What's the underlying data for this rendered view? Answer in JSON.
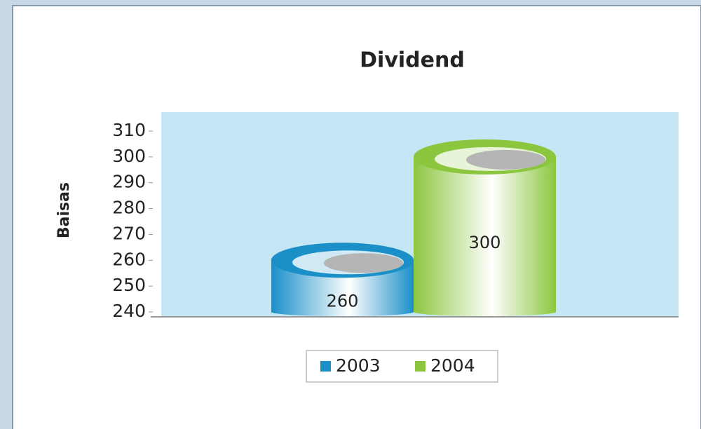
{
  "chart_data": {
    "type": "bar3d",
    "title": "Dividend",
    "y_label": "Baisas",
    "categories": [
      null
    ],
    "series": [
      {
        "name": "2003",
        "color": "#1a8fc8",
        "values": [
          260
        ]
      },
      {
        "name": "2004",
        "color": "#8cc63f",
        "values": [
          300
        ]
      }
    ],
    "ylim": [
      240,
      310
    ],
    "yticks": [
      240,
      250,
      260,
      270,
      280,
      290,
      300,
      310
    ],
    "grid": false,
    "legend": "bottom"
  }
}
